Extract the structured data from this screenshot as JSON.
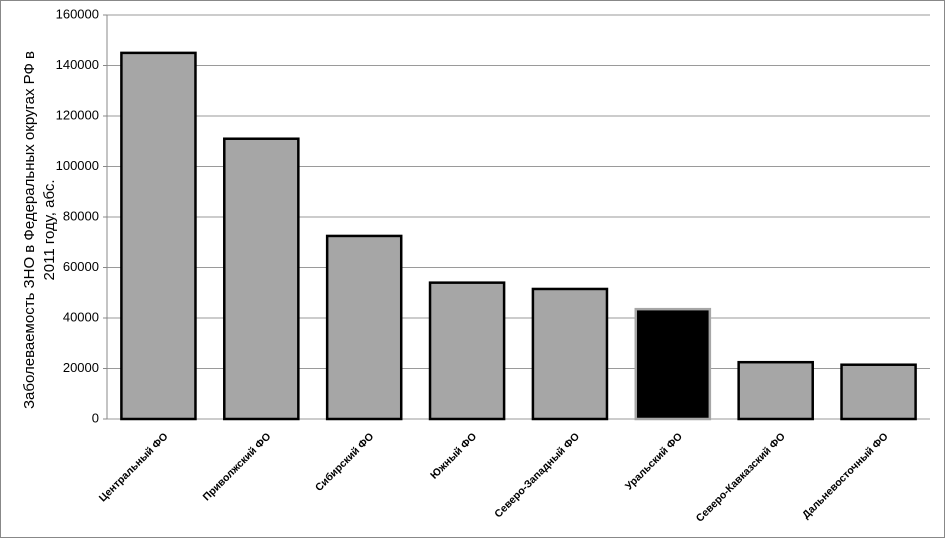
{
  "chart_data": {
    "type": "bar",
    "ylabel": [
      "Заболеваемость ЗНО в Федеральных округах РФ в",
      "2011 году, абс."
    ],
    "categories": [
      "Центральный ФО",
      "Приволжский ФО",
      "Сибирский ФО",
      "Южный ФО",
      "Северо-Западный ФО",
      "Уральский ФО",
      "Северо-Кавказский ФО",
      "Дальневосточный ФО"
    ],
    "values": [
      145000,
      111000,
      72500,
      54000,
      51500,
      43500,
      22500,
      21500
    ],
    "colors": [
      "#a6a6a6",
      "#a6a6a6",
      "#a6a6a6",
      "#a6a6a6",
      "#a6a6a6",
      "#000000",
      "#a6a6a6",
      "#a6a6a6"
    ],
    "ylim": [
      0,
      160000
    ],
    "yticks": [
      0,
      20000,
      40000,
      60000,
      80000,
      100000,
      120000,
      140000,
      160000
    ],
    "grid": true
  }
}
